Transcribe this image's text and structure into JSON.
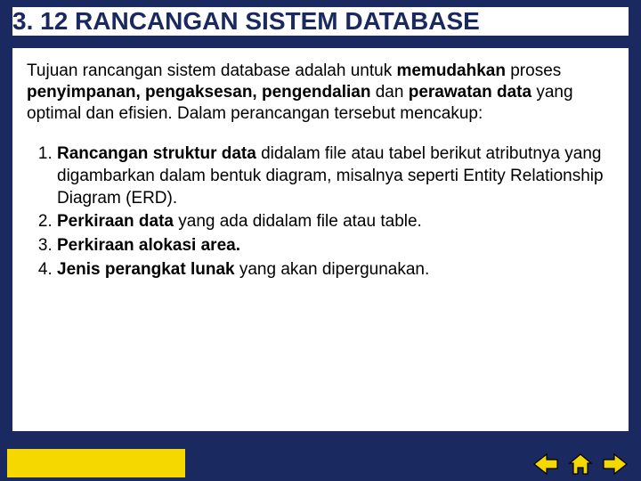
{
  "colors": {
    "background": "#1a2960",
    "content_bg": "#ffffff",
    "title_text": "#1a2960",
    "title_underline": "#1a2960",
    "body_text": "#000000",
    "footer_accent": "#f5d800",
    "nav_icon_fill": "#f5d800",
    "nav_icon_stroke": "#000000"
  },
  "typography": {
    "title_fontsize_pt": 21,
    "body_fontsize_pt": 14,
    "font_family": "Arial"
  },
  "title": "3. 12 RANCANGAN SISTEM DATABASE",
  "intro": {
    "segments": [
      {
        "t": "Tujuan rancangan sistem database adalah untuk ",
        "b": false
      },
      {
        "t": "memudahkan",
        "b": true
      },
      {
        "t": " proses ",
        "b": false
      },
      {
        "t": "penyimpanan, pengaksesan, pengendalian",
        "b": true
      },
      {
        "t": " dan ",
        "b": false
      },
      {
        "t": "perawatan data",
        "b": true
      },
      {
        "t": " yang optimal dan efisien. Dalam perancangan tersebut mencakup:",
        "b": false
      }
    ]
  },
  "list": [
    {
      "segments": [
        {
          "t": "Rancangan struktur data",
          "b": true
        },
        {
          "t": " didalam file atau tabel berikut atributnya yang digambarkan dalam bentuk diagram, misalnya seperti Entity Relationship Diagram (ERD).",
          "b": false
        }
      ]
    },
    {
      "segments": [
        {
          "t": "Perkiraan data",
          "b": true
        },
        {
          "t": " yang ada didalam file atau table.",
          "b": false
        }
      ]
    },
    {
      "segments": [
        {
          "t": "Perkiraan alokasi area.",
          "b": true
        }
      ]
    },
    {
      "segments": [
        {
          "t": "Jenis perangkat lunak",
          "b": true
        },
        {
          "t": " yang akan dipergunakan.",
          "b": false
        }
      ]
    }
  ],
  "nav": {
    "prev_label": "previous",
    "home_label": "home",
    "next_label": "next"
  }
}
